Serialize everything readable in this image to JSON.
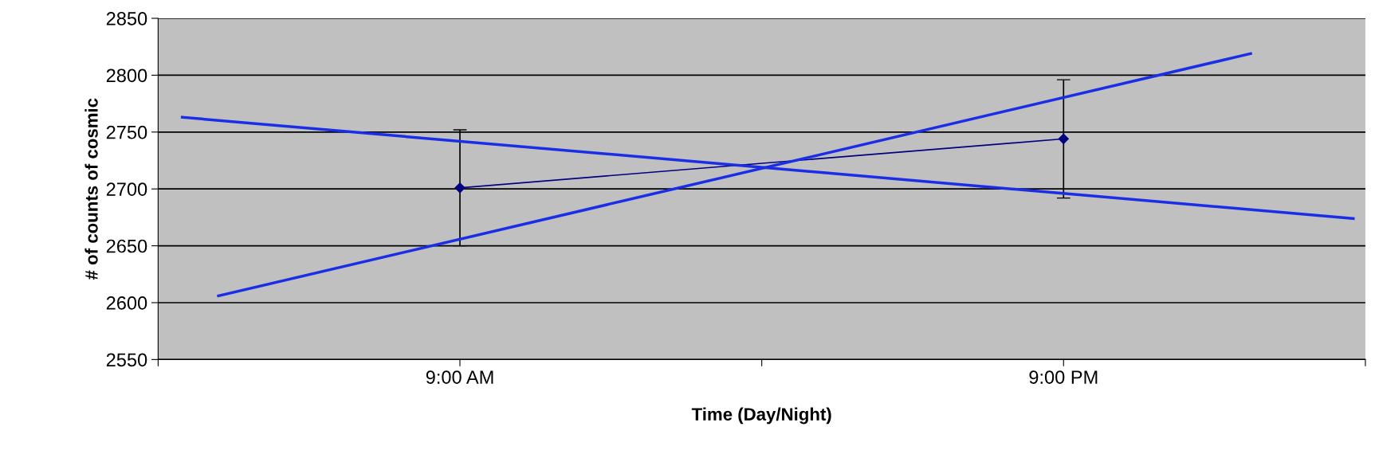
{
  "chart_data": {
    "type": "line",
    "xlabel": "Time (Day/Night)",
    "ylabel": "# of counts of cosmic",
    "xlim": [
      3,
      27
    ],
    "xticks": [
      {
        "value": 3,
        "label": null
      },
      {
        "value": 9,
        "label": "9:00 AM"
      },
      {
        "value": 15,
        "label": null
      },
      {
        "value": 21,
        "label": "9:00 PM"
      },
      {
        "value": 27,
        "label": null
      }
    ],
    "ylim": [
      2550,
      2850
    ],
    "yticks": [
      2550,
      2600,
      2650,
      2700,
      2750,
      2800,
      2850
    ],
    "grid": "y",
    "legend": false,
    "series": [
      {
        "color": "#000080",
        "x": [
          9,
          21
        ],
        "values": [
          2701,
          2744
        ],
        "errors": [
          51,
          52
        ],
        "marker": "diamond"
      },
      {
        "color": "#1a2ee6",
        "x": [
          3.48,
          26.76
        ],
        "values": [
          2763,
          2674
        ]
      },
      {
        "color": "#1a2ee6",
        "x": [
          4.2,
          24.72
        ],
        "values": [
          2606,
          2819
        ]
      }
    ]
  }
}
